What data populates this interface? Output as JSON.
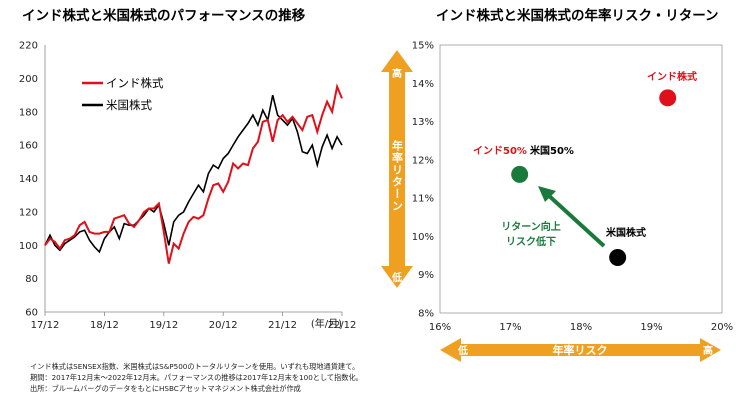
{
  "colors": {
    "india": "#e0101a",
    "us": "#000000",
    "arrow_orange": "#f0a020",
    "green": "#1a7a3c"
  },
  "chart_data": [
    {
      "type": "line",
      "title": "インド株式と米国株式のパフォーマンスの推移",
      "x_ticks": [
        "17/12",
        "18/12",
        "19/12",
        "20/12",
        "21/12",
        "22/12"
      ],
      "x_unit": "(年/月)",
      "ylim": [
        60,
        220
      ],
      "y_ticks": [
        60,
        80,
        100,
        120,
        140,
        160,
        180,
        200,
        220
      ],
      "legend": [
        "インド株式",
        "米国株式"
      ],
      "series": [
        {
          "name": "インド株式",
          "x": [
            0,
            1,
            2,
            3,
            4,
            5,
            6,
            7,
            8,
            9,
            10,
            11,
            12,
            13,
            14,
            15,
            16,
            17,
            18,
            19,
            20,
            21,
            22,
            23,
            24,
            25,
            26,
            27,
            28,
            29,
            30,
            31,
            32,
            33,
            34,
            35,
            36,
            37,
            38,
            39,
            40,
            41,
            42,
            43,
            44,
            45,
            46,
            47,
            48,
            49,
            50,
            51,
            52,
            53,
            54,
            55,
            56,
            57,
            58,
            59,
            60
          ],
          "values": [
            100,
            104,
            102,
            98,
            103,
            104,
            106,
            112,
            114,
            108,
            107,
            107,
            108,
            108,
            116,
            117,
            118,
            113,
            111,
            115,
            120,
            122,
            122,
            125,
            108,
            89,
            101,
            98,
            107,
            114,
            117,
            116,
            118,
            128,
            136,
            137,
            132,
            138,
            149,
            146,
            149,
            148,
            158,
            162,
            174,
            175,
            162,
            175,
            178,
            174,
            177,
            173,
            169,
            177,
            178,
            168,
            178,
            186,
            180,
            195,
            188
          ]
        },
        {
          "name": "米国株式",
          "x": [
            0,
            1,
            2,
            3,
            4,
            5,
            6,
            7,
            8,
            9,
            10,
            11,
            12,
            13,
            14,
            15,
            16,
            17,
            18,
            19,
            20,
            21,
            22,
            23,
            24,
            25,
            26,
            27,
            28,
            29,
            30,
            31,
            32,
            33,
            34,
            35,
            36,
            37,
            38,
            39,
            40,
            41,
            42,
            43,
            44,
            45,
            46,
            47,
            48,
            49,
            50,
            51,
            52,
            53,
            54,
            55,
            56,
            57,
            58,
            59,
            60
          ],
          "values": [
            100,
            106,
            100,
            97,
            101,
            103,
            105,
            108,
            109,
            103,
            99,
            96,
            104,
            108,
            111,
            104,
            113,
            112,
            112,
            115,
            118,
            122,
            120,
            124,
            113,
            100,
            114,
            118,
            120,
            126,
            131,
            136,
            132,
            143,
            148,
            146,
            152,
            155,
            160,
            165,
            169,
            173,
            178,
            172,
            181,
            175,
            190,
            178,
            175,
            172,
            176,
            168,
            156,
            155,
            160,
            148,
            159,
            166,
            158,
            165,
            160
          ]
        }
      ],
      "arrow_label": "年率リターン",
      "arrow_high": "高",
      "arrow_low": "低"
    },
    {
      "type": "scatter",
      "title": "インド株式と米国株式の年率リスク・リターン",
      "xlim": [
        16,
        20
      ],
      "ylim": [
        8,
        15
      ],
      "x_ticks": [
        "16%",
        "17%",
        "18%",
        "19%",
        "20%"
      ],
      "y_ticks": [
        "8%",
        "9%",
        "10%",
        "11%",
        "12%",
        "13%",
        "14%",
        "15%"
      ],
      "points": [
        {
          "label": "インド株式",
          "x": 19.23,
          "y": 13.62,
          "color": "#e0101a"
        },
        {
          "label": "インド50% 米国50%",
          "label_red": "インド50%",
          "label_black": "米国50%",
          "x": 17.13,
          "y": 11.62,
          "color": "#1a7a3c"
        },
        {
          "label": "米国株式",
          "x": 18.52,
          "y": 9.45,
          "color": "#000000"
        }
      ],
      "annotation": [
        "リターン向上",
        "リスク低下"
      ],
      "xarrow_label": "年率リスク",
      "xarrow_low": "低",
      "xarrow_high": "高"
    }
  ],
  "footnotes": [
    "インド株式はSENSEX指数、米国株式はS&P500のトータルリターンを使用。いずれも現地通貨建て。",
    "期間：2017年12月末～2022年12月末。パフォーマンスの推移は2017年12月末を100として指数化。",
    "出所：ブルームバーグのデータをもとにHSBCアセットマネジメント株式会社が作成"
  ]
}
